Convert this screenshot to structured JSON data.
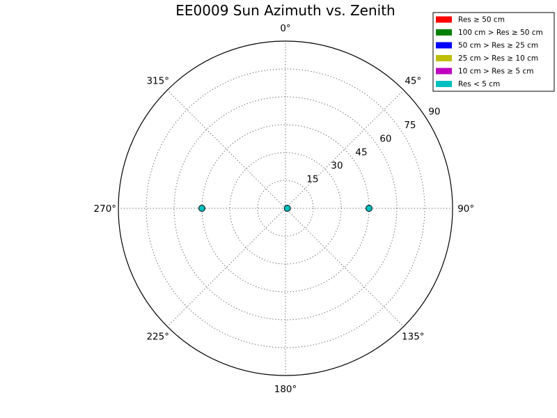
{
  "chart_data": {
    "type": "scatter",
    "projection": "polar",
    "title": "EE0009 Sun Azimuth vs. Zenith",
    "theta_direction": "clockwise",
    "theta_zero": "top",
    "theta_ticks": [
      "0°",
      "45°",
      "90°",
      "135°",
      "180°",
      "225°",
      "270°",
      "315°"
    ],
    "theta_tick_values": [
      0,
      45,
      90,
      135,
      180,
      225,
      270,
      315
    ],
    "r_ticks": [
      "15",
      "30",
      "45",
      "60",
      "75",
      "90"
    ],
    "r_tick_values": [
      15,
      30,
      45,
      60,
      75,
      90
    ],
    "rlim": [
      0,
      90
    ],
    "grid": true,
    "legend": {
      "placement": "top-right",
      "entries": [
        {
          "label": "Res ≥ 50 cm",
          "color": "#ff0000"
        },
        {
          "label": "100 cm > Res ≥ 50 cm",
          "color": "#008000"
        },
        {
          "label": "50 cm > Res ≥ 25 cm",
          "color": "#0000ff"
        },
        {
          "label": "25 cm > Res ≥ 10 cm",
          "color": "#bfbf00"
        },
        {
          "label": "10 cm > Res ≥ 5 cm",
          "color": "#bf00bf"
        },
        {
          "label": "Res < 5 cm",
          "color": "#00bfbf"
        }
      ]
    },
    "points": [
      {
        "azimuth": 90,
        "zenith": 45,
        "color": "#00bfbf"
      },
      {
        "azimuth": 270,
        "zenith": 45,
        "color": "#00bfbf"
      },
      {
        "azimuth": 90,
        "zenith": 1,
        "color": "#00bfbf"
      }
    ]
  }
}
